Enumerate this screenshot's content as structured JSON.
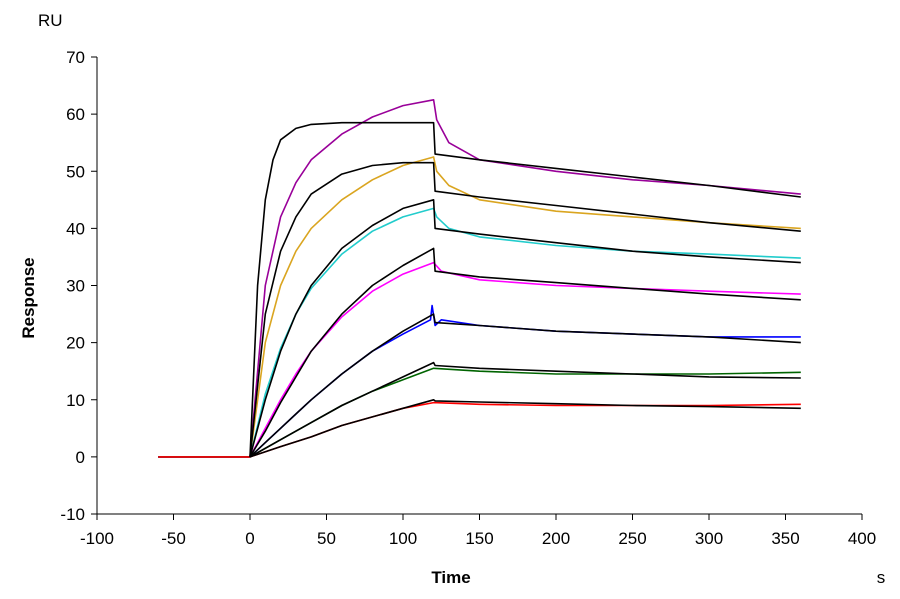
{
  "chart_data": {
    "type": "line",
    "title": "",
    "unit_label": "RU",
    "xlabel": "Time",
    "x_unit": "s",
    "ylabel": "Response",
    "xlim": [
      -100,
      400
    ],
    "ylim": [
      -10,
      70
    ],
    "x_ticks": [
      -100,
      -50,
      0,
      50,
      100,
      150,
      200,
      250,
      300,
      350,
      400
    ],
    "y_ticks": [
      -10,
      0,
      10,
      20,
      30,
      40,
      50,
      60,
      70
    ],
    "grid": false,
    "legend": "none",
    "series": [
      {
        "color": "#990099",
        "kind": "measured",
        "x": [
          -60,
          0,
          10,
          20,
          30,
          40,
          60,
          80,
          100,
          120,
          122,
          130,
          150,
          200,
          250,
          300,
          360
        ],
        "y": [
          0,
          0,
          30,
          42,
          48,
          52,
          56.5,
          59.5,
          61.5,
          62.5,
          59,
          55,
          52,
          50,
          48.5,
          47.5,
          46
        ]
      },
      {
        "color": "#000000",
        "kind": "fit",
        "x": [
          0,
          5,
          10,
          15,
          20,
          30,
          40,
          60,
          120,
          121,
          150,
          200,
          250,
          300,
          360
        ],
        "y": [
          0,
          30,
          45,
          52,
          55.5,
          57.5,
          58.2,
          58.5,
          58.5,
          53,
          52,
          50.5,
          49,
          47.5,
          45.5
        ]
      },
      {
        "color": "#daa520",
        "kind": "measured",
        "x": [
          -60,
          0,
          10,
          20,
          30,
          40,
          60,
          80,
          100,
          120,
          122,
          130,
          150,
          200,
          250,
          300,
          360
        ],
        "y": [
          0,
          0,
          20,
          30,
          36,
          40,
          45,
          48.5,
          51,
          52.5,
          50,
          47.5,
          45,
          43,
          42,
          41,
          40
        ]
      },
      {
        "color": "#000000",
        "kind": "fit",
        "x": [
          0,
          10,
          20,
          30,
          40,
          60,
          80,
          100,
          120,
          121,
          150,
          200,
          250,
          300,
          360
        ],
        "y": [
          0,
          25,
          36,
          42,
          46,
          49.5,
          51,
          51.5,
          51.5,
          46.5,
          45.5,
          44,
          42.5,
          41,
          39.5
        ]
      },
      {
        "color": "#22cccc",
        "kind": "measured",
        "x": [
          -60,
          0,
          10,
          20,
          30,
          40,
          60,
          80,
          100,
          120,
          122,
          130,
          150,
          200,
          250,
          300,
          360
        ],
        "y": [
          0,
          0,
          11,
          19,
          25,
          29.5,
          35.5,
          39.5,
          42,
          43.5,
          42,
          40,
          38.5,
          37,
          36,
          35.5,
          34.8
        ]
      },
      {
        "color": "#000000",
        "kind": "fit",
        "x": [
          0,
          10,
          20,
          30,
          40,
          60,
          80,
          100,
          120,
          121,
          150,
          200,
          250,
          300,
          360
        ],
        "y": [
          0,
          10,
          18.5,
          25,
          30,
          36.5,
          40.5,
          43.5,
          45,
          40,
          39,
          37.5,
          36,
          35,
          34
        ]
      },
      {
        "color": "#ff00ff",
        "kind": "measured",
        "x": [
          -60,
          0,
          10,
          20,
          30,
          40,
          60,
          80,
          100,
          120,
          125,
          150,
          200,
          250,
          300,
          360
        ],
        "y": [
          0,
          0,
          5,
          10,
          14.5,
          18.5,
          24.5,
          29,
          32,
          34,
          32.5,
          31,
          30,
          29.5,
          29,
          28.5
        ]
      },
      {
        "color": "#000000",
        "kind": "fit",
        "x": [
          0,
          10,
          20,
          30,
          40,
          60,
          80,
          100,
          120,
          121,
          150,
          200,
          250,
          300,
          360
        ],
        "y": [
          0,
          4.5,
          9.5,
          14,
          18.5,
          25,
          30,
          33.5,
          36.5,
          32.5,
          31.5,
          30.5,
          29.5,
          28.5,
          27.5
        ]
      },
      {
        "color": "#0000ff",
        "kind": "measured",
        "x": [
          -60,
          0,
          10,
          20,
          30,
          40,
          60,
          80,
          100,
          118,
          119,
          121,
          125,
          150,
          200,
          250,
          300,
          360
        ],
        "y": [
          0,
          0,
          2.5,
          5,
          7.5,
          10,
          14.5,
          18.5,
          21.5,
          24,
          26.5,
          23,
          24,
          23,
          22,
          21.5,
          21,
          21
        ]
      },
      {
        "color": "#000000",
        "kind": "fit",
        "x": [
          0,
          10,
          20,
          30,
          40,
          60,
          80,
          100,
          120,
          121,
          150,
          200,
          250,
          300,
          360
        ],
        "y": [
          0,
          2.5,
          5,
          7.5,
          10,
          14.5,
          18.5,
          22,
          25,
          23.5,
          23,
          22,
          21.5,
          21,
          20
        ]
      },
      {
        "color": "#006400",
        "kind": "measured",
        "x": [
          -60,
          0,
          20,
          40,
          60,
          80,
          100,
          120,
          150,
          200,
          250,
          300,
          360
        ],
        "y": [
          0,
          0,
          3,
          6,
          9,
          11.5,
          13.5,
          15.5,
          15,
          14.5,
          14.5,
          14.5,
          14.8
        ]
      },
      {
        "color": "#000000",
        "kind": "fit",
        "x": [
          0,
          20,
          40,
          60,
          80,
          100,
          120,
          121,
          150,
          200,
          250,
          300,
          360
        ],
        "y": [
          0,
          3,
          6,
          9,
          11.5,
          14,
          16.5,
          16,
          15.5,
          15,
          14.5,
          14,
          13.8
        ]
      },
      {
        "color": "#ff0000",
        "kind": "measured",
        "x": [
          -60,
          0,
          20,
          40,
          60,
          80,
          100,
          120,
          150,
          200,
          250,
          300,
          360
        ],
        "y": [
          0,
          0,
          1.8,
          3.5,
          5.5,
          7,
          8.5,
          9.5,
          9.2,
          9,
          9,
          9,
          9.2
        ]
      },
      {
        "color": "#000000",
        "kind": "fit",
        "x": [
          0,
          20,
          40,
          60,
          80,
          100,
          120,
          121,
          150,
          200,
          250,
          300,
          360
        ],
        "y": [
          0,
          1.8,
          3.5,
          5.5,
          7,
          8.5,
          10,
          9.8,
          9.6,
          9.3,
          9,
          8.8,
          8.5
        ]
      }
    ]
  }
}
